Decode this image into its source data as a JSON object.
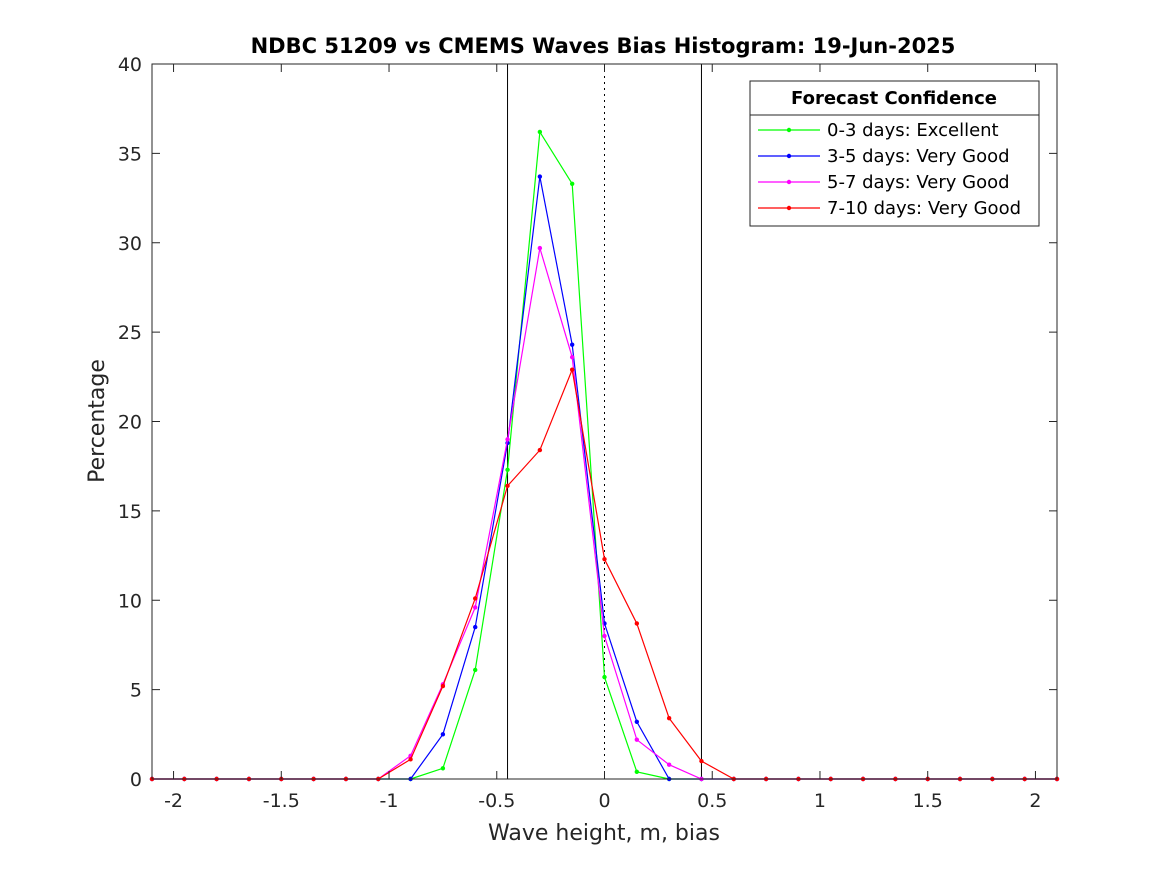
{
  "chart_data": {
    "type": "line",
    "title": "NDBC 51209 vs CMEMS Waves Bias Histogram: 19-Jun-2025",
    "xlabel": "Wave height, m, bias",
    "ylabel": "Percentage",
    "xlim": [
      -2.1,
      2.1
    ],
    "ylim": [
      0,
      40
    ],
    "xticks": [
      -2,
      -1.5,
      -1,
      -0.5,
      0,
      0.5,
      1,
      1.5,
      2
    ],
    "xtick_labels": [
      "-2",
      "-1.5",
      "-1",
      "-0.5",
      "0",
      "0.5",
      "1",
      "1.5",
      "2"
    ],
    "yticks": [
      0,
      5,
      10,
      15,
      20,
      25,
      30,
      35,
      40
    ],
    "ytick_labels": [
      "0",
      "5",
      "10",
      "15",
      "20",
      "25",
      "30",
      "35",
      "40"
    ],
    "grid": false,
    "reference_lines": [
      {
        "x": -0.45,
        "style": "solid",
        "color": "#000000"
      },
      {
        "x": 0,
        "style": "dotted",
        "color": "#000000"
      },
      {
        "x": 0.45,
        "style": "solid",
        "color": "#000000"
      }
    ],
    "legend": {
      "title": "Forecast Confidence",
      "position": "top-right"
    },
    "x": [
      -2.1,
      -1.95,
      -1.8,
      -1.65,
      -1.5,
      -1.35,
      -1.2,
      -1.05,
      -0.9,
      -0.75,
      -0.6,
      -0.45,
      -0.3,
      -0.15,
      0,
      0.15,
      0.3,
      0.45,
      0.6,
      0.75,
      0.9,
      1.05,
      1.2,
      1.35,
      1.5,
      1.65,
      1.8,
      1.95,
      2.1
    ],
    "series": [
      {
        "name": "0-3 days: Excellent",
        "color": "#00ff00",
        "values": [
          0,
          0,
          0,
          0,
          0,
          0,
          0,
          0,
          0,
          0.6,
          6.1,
          17.3,
          36.2,
          33.3,
          5.7,
          0.4,
          0,
          0,
          0,
          0,
          0,
          0,
          0,
          0,
          0,
          0,
          0,
          0,
          0
        ]
      },
      {
        "name": "3-5 days: Very Good",
        "color": "#0000ff",
        "values": [
          0,
          0,
          0,
          0,
          0,
          0,
          0,
          0,
          0,
          2.5,
          8.5,
          18.8,
          33.7,
          24.3,
          8.7,
          3.2,
          0,
          0,
          0,
          0,
          0,
          0,
          0,
          0,
          0,
          0,
          0,
          0,
          0
        ]
      },
      {
        "name": "5-7 days: Very Good",
        "color": "#ff00ff",
        "values": [
          0,
          0,
          0,
          0,
          0,
          0,
          0,
          0,
          1.3,
          5.3,
          9.6,
          19.0,
          29.7,
          23.6,
          8.0,
          2.2,
          0.8,
          0,
          0,
          0,
          0,
          0,
          0,
          0,
          0,
          0,
          0,
          0,
          0
        ]
      },
      {
        "name": "7-10 days: Very Good",
        "color": "#ff0000",
        "values": [
          0,
          0,
          0,
          0,
          0,
          0,
          0,
          0,
          1.1,
          5.2,
          10.1,
          16.4,
          18.4,
          22.9,
          12.3,
          8.7,
          3.4,
          1.0,
          0,
          0,
          0,
          0,
          0,
          0,
          0,
          0,
          0,
          0,
          0
        ]
      }
    ]
  }
}
